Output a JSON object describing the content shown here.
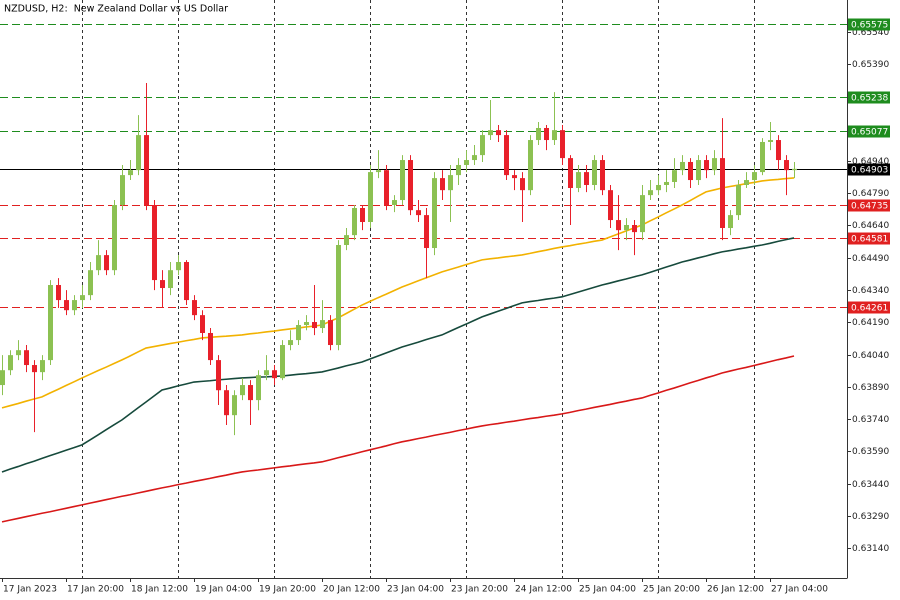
{
  "chart_data": {
    "type": "candlestick",
    "title": "NZDUSD, H2:  New Zealand Dollar vs US Dollar",
    "categories": [
      "17 Jan 2023",
      null,
      null,
      null,
      null,
      null,
      null,
      null,
      "17 Jan 20:00",
      null,
      null,
      null,
      null,
      null,
      null,
      null,
      "18 Jan 12:00",
      null,
      null,
      null,
      null,
      null,
      null,
      null,
      "19 Jan 04:00",
      null,
      null,
      null,
      null,
      null,
      null,
      null,
      "19 Jan 20:00",
      null,
      null,
      null,
      null,
      null,
      null,
      null,
      "20 Jan 12:00",
      null,
      null,
      null,
      null,
      null,
      null,
      null,
      "23 Jan 04:00",
      null,
      null,
      null,
      null,
      null,
      null,
      null,
      "23 Jan 20:00",
      null,
      null,
      null,
      null,
      null,
      null,
      null,
      "24 Jan 12:00",
      null,
      null,
      null,
      null,
      null,
      null,
      null,
      "25 Jan 04:00",
      null,
      null,
      null,
      null,
      null,
      null,
      null,
      "25 Jan 20:00",
      null,
      null,
      null,
      null,
      null,
      null,
      null,
      "26 Jan 12:00",
      null,
      null,
      null,
      null,
      null,
      null,
      null,
      "27 Jan 04:00",
      null,
      null,
      null
    ],
    "open": [
      0.63898,
      0.63967,
      0.64037,
      0.6406,
      0.63991,
      0.63958,
      0.64014,
      0.64363,
      0.64293,
      0.64246,
      0.64293,
      0.64316,
      0.64432,
      0.64502,
      0.64432,
      0.64735,
      0.64874,
      0.64897,
      0.6506,
      0.64735,
      0.64386,
      0.64349,
      0.64432,
      0.6447,
      0.64293,
      0.64223,
      0.6414,
      0.64014,
      0.63874,
      0.63758,
      0.63851,
      0.63898,
      0.63828,
      0.63944,
      0.63967,
      0.6393,
      0.64084,
      0.64107,
      0.64177,
      0.64191,
      0.64163,
      0.642,
      0.64084,
      0.64549,
      0.64595,
      0.64721,
      0.64656,
      0.64888,
      0.64897,
      0.64735,
      0.64758,
      0.64944,
      0.64711,
      0.64688,
      0.64535,
      0.6486,
      0.64804,
      0.64874,
      0.64921,
      0.64944,
      0.64967,
      0.6506,
      0.65083,
      0.6506,
      0.64874,
      0.6486,
      0.64804,
      0.65037,
      0.65093,
      0.65037,
      0.65083,
      0.64953,
      0.64814,
      0.64888,
      0.64828,
      0.64944,
      0.64804,
      0.64665,
      0.64618,
      0.64642,
      0.64609,
      0.64781,
      0.64804,
      0.64828,
      0.64842,
      0.64897,
      0.64935,
      0.64851,
      0.64944,
      0.64897,
      0.64953,
      0.64628,
      0.64688,
      0.64828,
      0.64851,
      0.64888,
      0.65028,
      0.65037,
      0.64944,
      0.64897
    ],
    "high": [
      0.64037,
      0.6406,
      0.64107,
      0.64084,
      0.64014,
      0.64037,
      0.64386,
      0.64395,
      0.64339,
      0.64316,
      0.64363,
      0.6447,
      0.64572,
      0.64525,
      0.64758,
      0.64921,
      0.64944,
      0.65153,
      0.65302,
      0.64758,
      0.64432,
      0.6447,
      0.64502,
      0.64479,
      0.64316,
      0.64246,
      0.64163,
      0.64037,
      0.63898,
      0.63874,
      0.6393,
      0.63921,
      0.63967,
      0.64037,
      0.63991,
      0.64107,
      0.64153,
      0.642,
      0.64223,
      0.64363,
      0.64293,
      0.64223,
      0.64572,
      0.64628,
      0.64735,
      0.64735,
      0.64921,
      0.6499,
      0.64921,
      0.64781,
      0.64967,
      0.64967,
      0.64758,
      0.64721,
      0.64888,
      0.64897,
      0.64921,
      0.64953,
      0.6499,
      0.65014,
      0.65083,
      0.65223,
      0.65107,
      0.65083,
      0.64897,
      0.64888,
      0.6506,
      0.65121,
      0.65107,
      0.6526,
      0.65107,
      0.64967,
      0.64921,
      0.64921,
      0.64967,
      0.64967,
      0.64828,
      0.64781,
      0.64674,
      0.64665,
      0.64828,
      0.64851,
      0.64874,
      0.64897,
      0.64953,
      0.64967,
      0.64953,
      0.64967,
      0.64967,
      0.6499,
      0.65139,
      0.64711,
      0.64851,
      0.64888,
      0.64921,
      0.65046,
      0.65121,
      0.6506,
      0.64967,
      0.64935
    ],
    "low": [
      0.63851,
      0.63944,
      0.64014,
      0.63958,
      0.63679,
      0.63921,
      0.63991,
      0.64256,
      0.64223,
      0.64223,
      0.64256,
      0.64293,
      0.64409,
      0.64409,
      0.64409,
      0.64711,
      0.64851,
      0.64874,
      0.64711,
      0.64339,
      0.64256,
      0.64316,
      0.64409,
      0.6427,
      0.642,
      0.64107,
      0.63991,
      0.63805,
      0.63712,
      0.63665,
      0.63828,
      0.63712,
      0.63781,
      0.63921,
      0.63898,
      0.63921,
      0.6406,
      0.64084,
      0.64153,
      0.6413,
      0.6414,
      0.6406,
      0.6406,
      0.64525,
      0.64572,
      0.64618,
      0.64628,
      0.6486,
      0.64711,
      0.64702,
      0.64735,
      0.64688,
      0.64656,
      0.64395,
      0.64502,
      0.64758,
      0.64656,
      0.64828,
      0.64888,
      0.64921,
      0.64935,
      0.65037,
      0.65028,
      0.64851,
      0.64804,
      0.64656,
      0.64781,
      0.65014,
      0.6499,
      0.65014,
      0.64921,
      0.64642,
      0.64795,
      0.64795,
      0.64804,
      0.64781,
      0.64628,
      0.64525,
      0.64572,
      0.64502,
      0.64572,
      0.64758,
      0.64781,
      0.64795,
      0.64814,
      0.64874,
      0.64814,
      0.64828,
      0.6486,
      0.64874,
      0.64572,
      0.64595,
      0.64665,
      0.64814,
      0.64828,
      0.64874,
      0.6499,
      0.64897,
      0.64781,
      0.6486
    ],
    "close": [
      0.63967,
      0.64037,
      0.6406,
      0.63991,
      0.63958,
      0.64014,
      0.64363,
      0.64293,
      0.64246,
      0.64293,
      0.64316,
      0.64432,
      0.64502,
      0.64432,
      0.64735,
      0.64874,
      0.64897,
      0.6506,
      0.64735,
      0.64386,
      0.64349,
      0.64432,
      0.6447,
      0.64293,
      0.64223,
      0.6414,
      0.64014,
      0.63874,
      0.63758,
      0.63851,
      0.63898,
      0.63828,
      0.63944,
      0.63967,
      0.6393,
      0.64084,
      0.64107,
      0.64177,
      0.64191,
      0.64163,
      0.642,
      0.64084,
      0.64549,
      0.64595,
      0.64721,
      0.64656,
      0.64888,
      0.64897,
      0.64735,
      0.64758,
      0.64944,
      0.64711,
      0.64688,
      0.64535,
      0.6486,
      0.64804,
      0.64874,
      0.64921,
      0.64944,
      0.64967,
      0.6506,
      0.65083,
      0.6506,
      0.64874,
      0.6486,
      0.64804,
      0.65037,
      0.65093,
      0.65037,
      0.65083,
      0.64953,
      0.64814,
      0.64888,
      0.64828,
      0.64944,
      0.64804,
      0.64665,
      0.64618,
      0.64642,
      0.64609,
      0.64781,
      0.64804,
      0.64828,
      0.64842,
      0.64897,
      0.64935,
      0.64851,
      0.64944,
      0.64897,
      0.64953,
      0.64628,
      0.64688,
      0.64828,
      0.64851,
      0.64888,
      0.65028,
      0.65037,
      0.64944,
      0.64897,
      0.64903
    ],
    "up_color": "#8cc152",
    "down_color": "#e8202a",
    "lines": [
      {
        "color": "#f2b200",
        "values": [
          0.63792,
          0.63802,
          0.63812,
          0.63823,
          0.63833,
          0.63843,
          0.63861,
          0.63878,
          0.63896,
          0.63913,
          0.63931,
          0.63948,
          0.63965,
          0.63981,
          0.63998,
          0.64015,
          0.64033,
          0.64052,
          0.6407,
          0.64077,
          0.64084,
          0.64091,
          0.64097,
          0.64104,
          0.6411,
          0.64117,
          0.6412,
          0.64123,
          0.64125,
          0.64128,
          0.64131,
          0.64136,
          0.6414,
          0.64145,
          0.64149,
          0.64154,
          0.64159,
          0.64163,
          0.64168,
          0.64172,
          0.64177,
          0.64194,
          0.6421,
          0.6423,
          0.6425,
          0.6427,
          0.64287,
          0.64304,
          0.6432,
          0.64337,
          0.64354,
          0.64368,
          0.64382,
          0.64396,
          0.6441,
          0.64424,
          0.64435,
          0.64446,
          0.64458,
          0.64469,
          0.6448,
          0.64485,
          0.64489,
          0.64494,
          0.64498,
          0.64503,
          0.6451,
          0.64518,
          0.64525,
          0.64533,
          0.6454,
          0.64546,
          0.64553,
          0.64559,
          0.64566,
          0.64572,
          0.64586,
          0.646,
          0.64614,
          0.64628,
          0.64642,
          0.64661,
          0.64679,
          0.64698,
          0.64716,
          0.64735,
          0.64755,
          0.64776,
          0.64796,
          0.64805,
          0.64814,
          0.64821,
          0.64827,
          0.64834,
          0.6484,
          0.64847,
          0.64851,
          0.64854,
          0.64858,
          0.64861
        ]
      },
      {
        "color": "#164a3c",
        "values": [
          0.63494,
          0.63507,
          0.63519,
          0.63532,
          0.63544,
          0.63557,
          0.6357,
          0.63582,
          0.63595,
          0.63607,
          0.6362,
          0.63643,
          0.63666,
          0.6369,
          0.63713,
          0.63736,
          0.63764,
          0.63792,
          0.63819,
          0.63847,
          0.63875,
          0.63884,
          0.63894,
          0.63903,
          0.63912,
          0.63915,
          0.63918,
          0.63922,
          0.63925,
          0.63928,
          0.63931,
          0.63933,
          0.63935,
          0.63936,
          0.63938,
          0.6394,
          0.63944,
          0.63948,
          0.63951,
          0.63955,
          0.63959,
          0.63968,
          0.63977,
          0.63987,
          0.63996,
          0.64005,
          0.64019,
          0.64033,
          0.64047,
          0.64061,
          0.64075,
          0.64086,
          0.64097,
          0.64109,
          0.6412,
          0.64131,
          0.64148,
          0.64165,
          0.64181,
          0.64198,
          0.64215,
          0.64228,
          0.64241,
          0.64254,
          0.64267,
          0.6428,
          0.64286,
          0.64291,
          0.64297,
          0.64302,
          0.64308,
          0.64319,
          0.6433,
          0.64341,
          0.64352,
          0.64363,
          0.64372,
          0.64382,
          0.64391,
          0.64401,
          0.6441,
          0.64422,
          0.64434,
          0.64446,
          0.64458,
          0.6447,
          0.64479,
          0.64489,
          0.64498,
          0.64508,
          0.64517,
          0.64523,
          0.6453,
          0.64536,
          0.64543,
          0.64549,
          0.64557,
          0.64566,
          0.64574,
          0.64582
        ]
      },
      {
        "color": "#d81818",
        "values": [
          0.63262,
          0.6327,
          0.63278,
          0.63286,
          0.63294,
          0.63302,
          0.63309,
          0.63317,
          0.63325,
          0.63333,
          0.63341,
          0.63349,
          0.63357,
          0.63365,
          0.63373,
          0.63381,
          0.63388,
          0.63396,
          0.63404,
          0.63412,
          0.6342,
          0.63427,
          0.63435,
          0.63442,
          0.6345,
          0.63457,
          0.63464,
          0.63472,
          0.63479,
          0.63487,
          0.63494,
          0.63499,
          0.63503,
          0.63508,
          0.63513,
          0.63518,
          0.63522,
          0.63527,
          0.63532,
          0.63536,
          0.63541,
          0.6355,
          0.6356,
          0.63569,
          0.63578,
          0.63588,
          0.63597,
          0.63606,
          0.63615,
          0.63625,
          0.63634,
          0.63641,
          0.63649,
          0.63656,
          0.63664,
          0.63671,
          0.63678,
          0.63686,
          0.63693,
          0.63701,
          0.63708,
          0.63714,
          0.63719,
          0.63725,
          0.6373,
          0.63736,
          0.63742,
          0.63747,
          0.63753,
          0.63758,
          0.63764,
          0.63771,
          0.63779,
          0.63786,
          0.63794,
          0.63801,
          0.63808,
          0.63816,
          0.63823,
          0.63831,
          0.63838,
          0.6385,
          0.63861,
          0.63873,
          0.63884,
          0.63896,
          0.63908,
          0.63919,
          0.63931,
          0.63942,
          0.63954,
          0.63963,
          0.63972,
          0.6398,
          0.63989,
          0.63998,
          0.64007,
          0.64016,
          0.64024,
          0.64033
        ]
      }
    ],
    "levels": [
      {
        "value": 0.65575,
        "color": "#1e8c1e",
        "style": "dashed"
      },
      {
        "value": 0.65238,
        "color": "#1e8c1e",
        "style": "dashed"
      },
      {
        "value": 0.65077,
        "color": "#1e8c1e",
        "style": "dashed"
      },
      {
        "value": 0.64903,
        "color": "#000000",
        "style": "solid"
      },
      {
        "value": 0.64735,
        "color": "#e02020",
        "style": "dashed"
      },
      {
        "value": 0.64581,
        "color": "#e02020",
        "style": "dashed"
      },
      {
        "value": 0.64261,
        "color": "#e02020",
        "style": "dashed"
      }
    ],
    "ylim": [
      0.63001,
      0.65688
    ],
    "yticks": [
      {
        "value": 0.6314,
        "label": "0.63140"
      },
      {
        "value": 0.6329,
        "label": "0.63290"
      },
      {
        "value": 0.6344,
        "label": "0.63440"
      },
      {
        "value": 0.6359,
        "label": "0.63590"
      },
      {
        "value": 0.6374,
        "label": "0.63740"
      },
      {
        "value": 0.6389,
        "label": "0.63890"
      },
      {
        "value": 0.6404,
        "label": "0.64040"
      },
      {
        "value": 0.6419,
        "label": "0.64190"
      },
      {
        "value": 0.6434,
        "label": "0.64340"
      },
      {
        "value": 0.6449,
        "label": "0.64490"
      },
      {
        "value": 0.6464,
        "label": "0.64640"
      },
      {
        "value": 0.6479,
        "label": "0.64790"
      },
      {
        "value": 0.6494,
        "label": "0.64940"
      },
      {
        "value": 0.6539,
        "label": "0.65390"
      },
      {
        "value": 0.6554,
        "label": "0.65540"
      }
    ]
  }
}
